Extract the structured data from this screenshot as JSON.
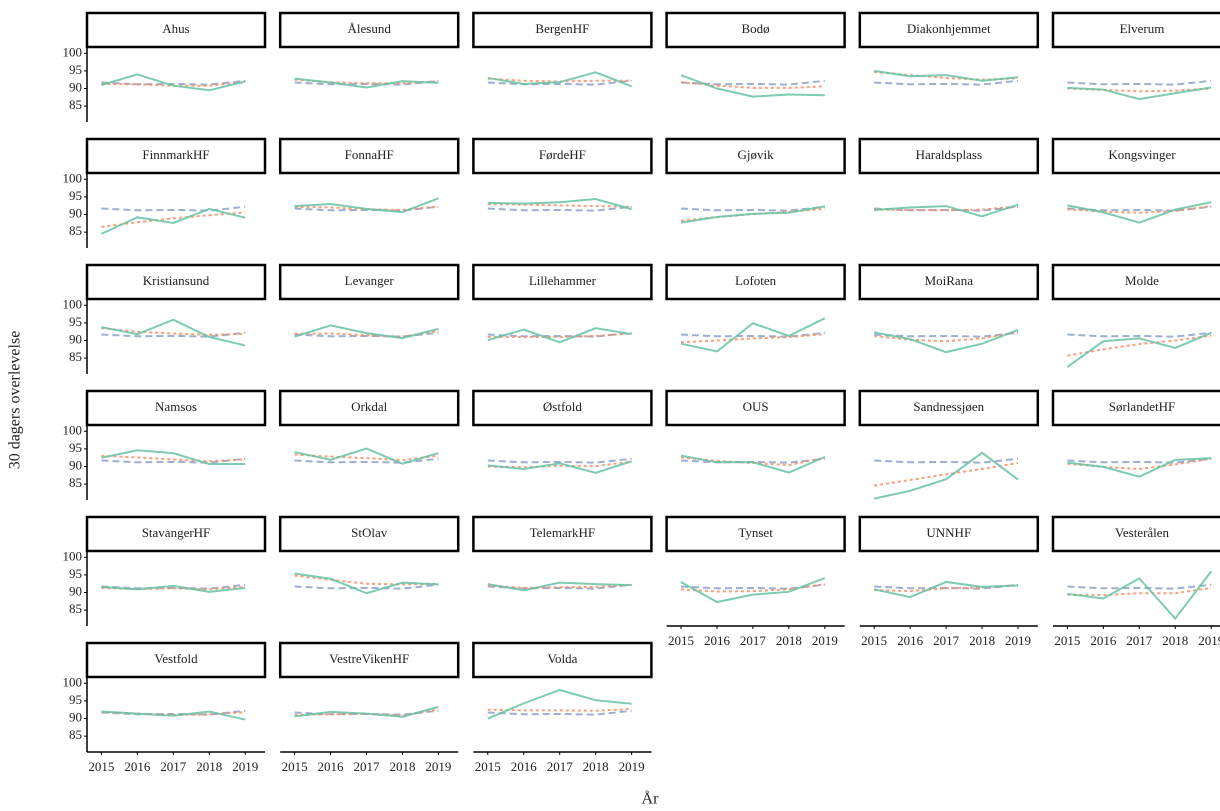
{
  "chart_data": {
    "type": "line",
    "ylabel": "30 dagers overlevelse",
    "xlabel": "År",
    "x": [
      2015,
      2016,
      2017,
      2018,
      2019
    ],
    "xlim": [
      2014.6,
      2019.55
    ],
    "xticks": [
      2015,
      2016,
      2017,
      2018,
      2019
    ],
    "ylim": [
      80.5,
      101.5
    ],
    "yticks": [
      85,
      90,
      95,
      100
    ],
    "styles": [
      {
        "color": "#66c2a5",
        "dash": "none"
      },
      {
        "color": "#fc8d62",
        "dash": "3 3"
      },
      {
        "color": "#8da0cb",
        "dash": "7 4"
      }
    ],
    "reference": [
      91.7,
      91.2,
      91.3,
      91.1,
      92.2
    ],
    "panels": [
      {
        "title": "Ahus",
        "series": [
          {
            "values": [
              91,
              94,
              90.8,
              89.5,
              92
            ]
          },
          {
            "values": [
              91.3,
              91.2,
              90.8,
              90.8,
              91.8
            ]
          }
        ]
      },
      {
        "title": "Ålesund",
        "series": [
          {
            "values": [
              92.8,
              91.7,
              90.3,
              92.1,
              91.6
            ]
          },
          {
            "values": [
              92.5,
              91.8,
              91.5,
              91.5,
              92
            ]
          }
        ]
      },
      {
        "title": "BergenHF",
        "series": [
          {
            "values": [
              93,
              91.3,
              91.8,
              94.6,
              90.6
            ]
          },
          {
            "values": [
              92.8,
              92.2,
              92,
              92.2,
              92.2
            ]
          }
        ]
      },
      {
        "title": "Bodø",
        "series": [
          {
            "values": [
              93.8,
              90,
              87.7,
              88.3,
              88.1
            ]
          },
          {
            "values": [
              91.8,
              90.8,
              90.2,
              90.2,
              90.6
            ]
          }
        ]
      },
      {
        "title": "Diakonhjemmet",
        "series": [
          {
            "values": [
              95,
              93.5,
              93.8,
              92.2,
              93.2
            ]
          },
          {
            "values": [
              94.7,
              93.8,
              93,
              92.5,
              92.9
            ]
          }
        ]
      },
      {
        "title": "Elverum",
        "series": [
          {
            "values": [
              90.2,
              89.7,
              87,
              88.7,
              90.3
            ]
          },
          {
            "values": [
              90,
              89.6,
              89.2,
              89.4,
              90
            ]
          }
        ]
      },
      {
        "title": "FinnmarkHF",
        "series": [
          {
            "values": [
              84.5,
              89.2,
              87.6,
              91.6,
              89.1
            ]
          },
          {
            "values": [
              86.5,
              87.8,
              88.9,
              89.8,
              90.6
            ]
          }
        ]
      },
      {
        "title": "FonnaHF",
        "series": [
          {
            "values": [
              92.4,
              93,
              91.6,
              90.7,
              94.6
            ]
          },
          {
            "values": [
              92.2,
              92,
              91.5,
              91.3,
              92.3
            ]
          }
        ]
      },
      {
        "title": "FørdeHF",
        "series": [
          {
            "values": [
              93.3,
              93.1,
              93.5,
              94.4,
              91.5
            ]
          },
          {
            "values": [
              93,
              92.8,
              92.6,
              92.4,
              92.2
            ]
          }
        ]
      },
      {
        "title": "Gjøvik",
        "series": [
          {
            "values": [
              87.7,
              89.3,
              90.2,
              90.5,
              92.3
            ]
          },
          {
            "values": [
              88.2,
              89.3,
              90.1,
              90.8,
              91.6
            ]
          }
        ]
      },
      {
        "title": "Haraldsplass",
        "series": [
          {
            "values": [
              91.3,
              92,
              92.4,
              89.5,
              92.8
            ]
          },
          {
            "values": [
              91.4,
              91.3,
              91.2,
              91.4,
              92.3
            ]
          }
        ]
      },
      {
        "title": "Kongsvinger",
        "series": [
          {
            "values": [
              92.6,
              90.6,
              87.7,
              91.4,
              93.5
            ]
          },
          {
            "values": [
              91.5,
              90.8,
              90.5,
              91,
              92.4
            ]
          }
        ]
      },
      {
        "title": "Kristiansund",
        "series": [
          {
            "values": [
              93.8,
              91.8,
              95.9,
              91,
              88.6
            ]
          },
          {
            "values": [
              93.5,
              92.5,
              92,
              91.6,
              91.9
            ]
          }
        ]
      },
      {
        "title": "Levanger",
        "series": [
          {
            "values": [
              91.1,
              94.3,
              92.1,
              90.7,
              93.3
            ]
          },
          {
            "values": [
              91.9,
              92,
              91.5,
              91.1,
              92.7
            ]
          }
        ]
      },
      {
        "title": "Lillehammer",
        "series": [
          {
            "values": [
              90.1,
              93.1,
              89.5,
              93.5,
              91.8
            ]
          },
          {
            "values": [
              91,
              91,
              91,
              91.3,
              92
            ]
          }
        ]
      },
      {
        "title": "Lofoten",
        "series": [
          {
            "values": [
              89.1,
              86.9,
              94.9,
              91.3,
              96.3
            ]
          },
          {
            "values": [
              89.5,
              90,
              90.6,
              91,
              91.8
            ]
          }
        ]
      },
      {
        "title": "MoiRana",
        "series": [
          {
            "values": [
              92.3,
              90.4,
              86.7,
              89.1,
              93
            ]
          },
          {
            "values": [
              91.3,
              90.2,
              89.8,
              90.6,
              92.4
            ]
          }
        ]
      },
      {
        "title": "Molde",
        "series": [
          {
            "values": [
              82.5,
              89.8,
              90.6,
              87.9,
              92.2
            ]
          },
          {
            "values": [
              85.7,
              87.5,
              89,
              90,
              91.4
            ]
          }
        ]
      },
      {
        "title": "Namsos",
        "series": [
          {
            "values": [
              92.5,
              94.6,
              93.8,
              90.7,
              90.7
            ]
          },
          {
            "values": [
              93,
              92.6,
              92,
              91.5,
              92
            ]
          }
        ]
      },
      {
        "title": "Orkdal",
        "series": [
          {
            "values": [
              94.1,
              91.9,
              95.1,
              90.8,
              93.8
            ]
          },
          {
            "values": [
              93.4,
              92.8,
              92.4,
              91.8,
              93.1
            ]
          }
        ]
      },
      {
        "title": "Østfold",
        "series": [
          {
            "values": [
              90.3,
              89.3,
              90.9,
              88.2,
              91.5
            ]
          },
          {
            "values": [
              90,
              89.8,
              90.2,
              90.1,
              91.4
            ]
          }
        ]
      },
      {
        "title": "OUS",
        "series": [
          {
            "values": [
              93.1,
              91.2,
              91.2,
              88.3,
              92.7
            ]
          },
          {
            "values": [
              92.6,
              91.6,
              91,
              90.4,
              92.5
            ]
          }
        ]
      },
      {
        "title": "Sandnessjøen",
        "series": [
          {
            "values": [
              80.9,
              83.1,
              86.4,
              93.9,
              86.3
            ]
          },
          {
            "values": [
              84.6,
              86.2,
              87.8,
              89.3,
              91
            ]
          }
        ]
      },
      {
        "title": "SørlandetHF",
        "series": [
          {
            "values": [
              91.1,
              89.9,
              87.1,
              91.9,
              92.4
            ]
          },
          {
            "values": [
              90.8,
              89.9,
              89.3,
              90.6,
              92.2
            ]
          }
        ]
      },
      {
        "title": "StavangerHF",
        "series": [
          {
            "values": [
              91.6,
              90.9,
              91.9,
              90.2,
              91.3
            ]
          },
          {
            "values": [
              91.3,
              91,
              91.2,
              90.9,
              91.6
            ]
          }
        ]
      },
      {
        "title": "StOlav",
        "series": [
          {
            "values": [
              95.4,
              93.9,
              89.8,
              92.8,
              92.3
            ]
          },
          {
            "values": [
              94.8,
              93.6,
              92.5,
              92.3,
              92.5
            ]
          }
        ]
      },
      {
        "title": "TelemarkHF",
        "series": [
          {
            "values": [
              92.4,
              90.6,
              92.8,
              92.4,
              92.1
            ]
          },
          {
            "values": [
              92,
              91.3,
              91.5,
              91.6,
              92.2
            ]
          }
        ]
      },
      {
        "title": "Tynset",
        "series": [
          {
            "values": [
              93,
              87.3,
              89.4,
              90.2,
              94.1
            ]
          },
          {
            "values": [
              90.9,
              90.3,
              90.4,
              90.9,
              92.4
            ]
          }
        ]
      },
      {
        "title": "UNNHF",
        "series": [
          {
            "values": [
              90.9,
              88.7,
              93,
              91.6,
              92
            ]
          },
          {
            "values": [
              90.7,
              90.4,
              91.2,
              91.4,
              92.1
            ]
          }
        ]
      },
      {
        "title": "Vesterålen",
        "series": [
          {
            "values": [
              89.6,
              88.3,
              94,
              82.6,
              96
            ]
          },
          {
            "values": [
              89.4,
              89.3,
              89.8,
              89.8,
              91.3
            ]
          }
        ]
      },
      {
        "title": "Vestfold",
        "series": [
          {
            "values": [
              92,
              91.4,
              90.8,
              92,
              89.7
            ]
          },
          {
            "values": [
              91.8,
              91.4,
              91,
              91.2,
              91.8
            ]
          }
        ]
      },
      {
        "title": "VestreVikenHF",
        "series": [
          {
            "values": [
              90.6,
              91.9,
              91.4,
              90.5,
              93.3
            ]
          },
          {
            "values": [
              91,
              91.2,
              91.3,
              90.8,
              92.6
            ]
          }
        ]
      },
      {
        "title": "Volda",
        "series": [
          {
            "values": [
              90,
              94.3,
              98.1,
              95.2,
              94.2
            ]
          },
          {
            "values": [
              92.5,
              92.3,
              92.3,
              92.2,
              92.7
            ]
          }
        ]
      }
    ]
  }
}
